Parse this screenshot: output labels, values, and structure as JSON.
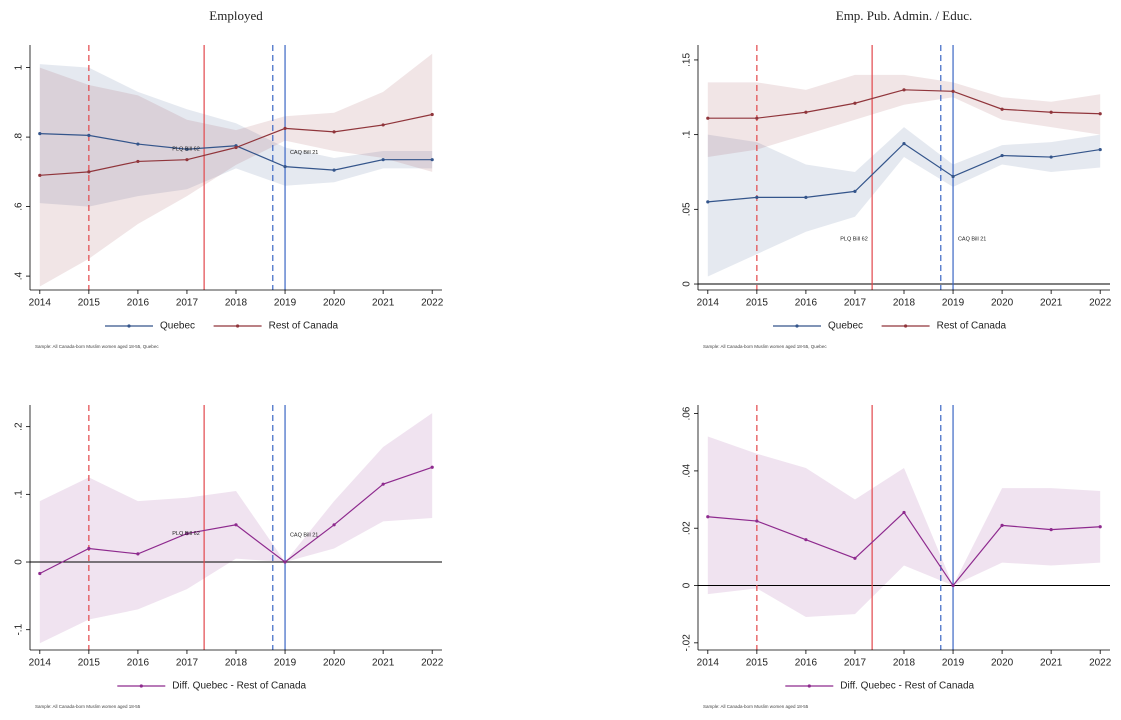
{
  "chart_data": [
    {
      "type": "line",
      "title": "Employed",
      "x": [
        2014,
        2015,
        2016,
        2017,
        2018,
        2019,
        2020,
        2021,
        2022
      ],
      "xlim": [
        2013.8,
        2022.2
      ],
      "xticks": [
        2014,
        2015,
        2016,
        2017,
        2018,
        2019,
        2020,
        2021,
        2022
      ],
      "ylim": [
        0.36,
        1.065
      ],
      "yticks": [
        {
          "value": 0.4,
          "label": ".4"
        },
        {
          "value": 0.6,
          "label": ".6"
        },
        {
          "value": 0.8,
          "label": ".8"
        },
        1
      ],
      "series": [
        {
          "name": "Quebec",
          "color": "#34558b",
          "values": [
            0.81,
            0.805,
            0.78,
            0.765,
            0.775,
            0.715,
            0.705,
            0.735,
            0.735
          ],
          "lower": [
            0.61,
            0.6,
            0.63,
            0.65,
            0.71,
            0.66,
            0.67,
            0.71,
            0.71
          ],
          "upper": [
            1.01,
            1.0,
            0.93,
            0.88,
            0.84,
            0.77,
            0.74,
            0.76,
            0.76
          ]
        },
        {
          "name": "Rest of Canada",
          "color": "#90353b",
          "values": [
            0.69,
            0.7,
            0.73,
            0.735,
            0.77,
            0.825,
            0.815,
            0.835,
            0.865
          ],
          "lower": [
            0.37,
            0.45,
            0.55,
            0.63,
            0.72,
            0.79,
            0.76,
            0.74,
            0.7
          ],
          "upper": [
            1.0,
            0.95,
            0.92,
            0.85,
            0.82,
            0.86,
            0.87,
            0.93,
            1.04
          ]
        }
      ],
      "vlines": [
        {
          "x": 2015,
          "color": "#e2474b",
          "style": "dashed"
        },
        {
          "x": 2017.35,
          "color": "#e2474b",
          "style": "solid"
        },
        {
          "x": 2018.75,
          "color": "#3a66c4",
          "style": "dashed"
        },
        {
          "x": 2019,
          "color": "#3a66c4",
          "style": "solid"
        }
      ],
      "annotations": [
        {
          "text": "PLQ Bill 62",
          "x": 2016.7,
          "y": 0.765,
          "color": "#e2474b"
        },
        {
          "text": "CAQ Bill 21",
          "x": 2019.1,
          "y": 0.755,
          "color": "#3a66c4"
        }
      ],
      "note": "Sample: All Canada-born Muslim women aged 18-55, Quebec"
    },
    {
      "type": "line",
      "title": "Emp. Pub. Admin. / Educ.",
      "x": [
        2014,
        2015,
        2016,
        2017,
        2018,
        2019,
        2020,
        2021,
        2022
      ],
      "xlim": [
        2013.8,
        2022.2
      ],
      "xticks": [
        2014,
        2015,
        2016,
        2017,
        2018,
        2019,
        2020,
        2021,
        2022
      ],
      "ylim": [
        -0.004,
        0.16
      ],
      "yticks": [
        0,
        {
          "value": 0.05,
          "label": ".05"
        },
        {
          "value": 0.1,
          "label": ".1"
        },
        {
          "value": 0.15,
          "label": ".15"
        }
      ],
      "hline": 0,
      "series": [
        {
          "name": "Quebec",
          "color": "#34558b",
          "values": [
            0.055,
            0.058,
            0.058,
            0.062,
            0.094,
            0.072,
            0.086,
            0.085,
            0.09
          ],
          "lower": [
            0.005,
            0.02,
            0.035,
            0.045,
            0.085,
            0.065,
            0.08,
            0.075,
            0.078
          ],
          "upper": [
            0.1,
            0.095,
            0.08,
            0.075,
            0.105,
            0.08,
            0.093,
            0.095,
            0.1
          ]
        },
        {
          "name": "Rest of Canada",
          "color": "#90353b",
          "values": [
            0.111,
            0.111,
            0.115,
            0.121,
            0.13,
            0.129,
            0.117,
            0.115,
            0.114
          ],
          "lower": [
            0.085,
            0.09,
            0.1,
            0.11,
            0.12,
            0.125,
            0.11,
            0.105,
            0.1
          ],
          "upper": [
            0.135,
            0.135,
            0.13,
            0.14,
            0.14,
            0.135,
            0.125,
            0.122,
            0.127
          ]
        }
      ],
      "vlines": [
        {
          "x": 2015,
          "color": "#e2474b",
          "style": "dashed"
        },
        {
          "x": 2017.35,
          "color": "#e2474b",
          "style": "solid"
        },
        {
          "x": 2018.75,
          "color": "#3a66c4",
          "style": "dashed"
        },
        {
          "x": 2019,
          "color": "#3a66c4",
          "style": "solid"
        }
      ],
      "annotations": [
        {
          "text": "PLQ Bill 62",
          "x": 2016.7,
          "y": 0.03,
          "color": "#e2474b"
        },
        {
          "text": "CAQ Bill 21",
          "x": 2019.1,
          "y": 0.03,
          "color": "#3a66c4"
        }
      ],
      "note": "Sample: All Canada-born Muslim women aged 18-55, Quebec"
    },
    {
      "type": "line",
      "x": [
        2014,
        2015,
        2016,
        2017,
        2018,
        2019,
        2020,
        2021,
        2022
      ],
      "xlim": [
        2013.8,
        2022.2
      ],
      "xticks": [
        2014,
        2015,
        2016,
        2017,
        2018,
        2019,
        2020,
        2021,
        2022
      ],
      "ylim": [
        -0.13,
        0.232
      ],
      "yticks": [
        {
          "value": -0.1,
          "label": "-.1"
        },
        0,
        {
          "value": 0.1,
          "label": ".1"
        },
        {
          "value": 0.2,
          "label": ".2"
        }
      ],
      "hline": 0,
      "series": [
        {
          "name": "Diff. Quebec - Rest of Canada",
          "color": "#8e2a8e",
          "values": [
            -0.017,
            0.02,
            0.012,
            0.042,
            0.055,
            0,
            0.055,
            0.115,
            0.14
          ],
          "lower": [
            -0.12,
            -0.085,
            -0.07,
            -0.04,
            0.005,
            0,
            0.02,
            0.06,
            0.065
          ],
          "upper": [
            0.09,
            0.125,
            0.09,
            0.095,
            0.105,
            0,
            0.09,
            0.17,
            0.22
          ]
        }
      ],
      "vlines": [
        {
          "x": 2015,
          "color": "#e2474b",
          "style": "dashed"
        },
        {
          "x": 2017.35,
          "color": "#e2474b",
          "style": "solid"
        },
        {
          "x": 2018.75,
          "color": "#3a66c4",
          "style": "dashed"
        },
        {
          "x": 2019,
          "color": "#3a66c4",
          "style": "solid"
        }
      ],
      "annotations": [
        {
          "text": "PLQ Bill 62",
          "x": 2016.7,
          "y": 0.042,
          "color": "#e2474b"
        },
        {
          "text": "CAQ Bill 21",
          "x": 2019.1,
          "y": 0.04,
          "color": "#3a66c4"
        }
      ],
      "note": "Sample: All Canada-born Muslim women aged 18-55"
    },
    {
      "type": "line",
      "x": [
        2014,
        2015,
        2016,
        2017,
        2018,
        2019,
        2020,
        2021,
        2022
      ],
      "xlim": [
        2013.8,
        2022.2
      ],
      "xticks": [
        2014,
        2015,
        2016,
        2017,
        2018,
        2019,
        2020,
        2021,
        2022
      ],
      "ylim": [
        -0.0225,
        0.063
      ],
      "yticks": [
        {
          "value": -0.02,
          "label": "-.02"
        },
        0,
        {
          "value": 0.02,
          "label": ".02"
        },
        {
          "value": 0.04,
          "label": ".04"
        },
        {
          "value": 0.06,
          "label": ".06"
        }
      ],
      "hline": 0,
      "series": [
        {
          "name": "Diff. Quebec - Rest of Canada",
          "color": "#8e2a8e",
          "values": [
            0.024,
            0.0225,
            0.016,
            0.0095,
            0.0255,
            0,
            0.021,
            0.0195,
            0.0205
          ],
          "lower": [
            -0.003,
            -0.001,
            -0.011,
            -0.01,
            0.007,
            0,
            0.008,
            0.007,
            0.008
          ],
          "upper": [
            0.052,
            0.046,
            0.041,
            0.03,
            0.041,
            0,
            0.034,
            0.034,
            0.033
          ]
        }
      ],
      "vlines": [
        {
          "x": 2015,
          "color": "#e2474b",
          "style": "dashed"
        },
        {
          "x": 2017.35,
          "color": "#e2474b",
          "style": "solid"
        },
        {
          "x": 2018.75,
          "color": "#3a66c4",
          "style": "dashed"
        },
        {
          "x": 2019,
          "color": "#3a66c4",
          "style": "solid"
        }
      ],
      "note": "Sample: All Canada-born Muslim women aged 18-55"
    }
  ]
}
